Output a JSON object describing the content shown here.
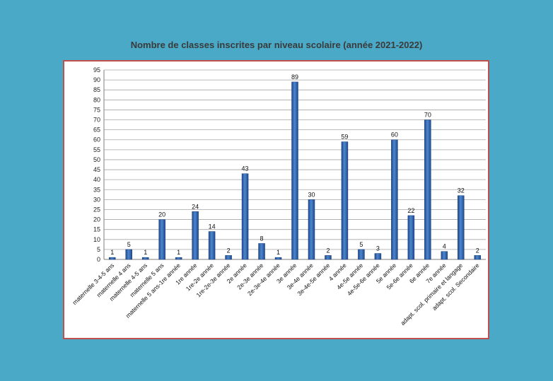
{
  "chart_data": {
    "type": "bar",
    "title": "Nombre de classes inscrites par niveau scolaire (année 2021-2022)",
    "xlabel": "",
    "ylabel": "",
    "ylim": [
      0,
      95
    ],
    "yticks": [
      0,
      5,
      10,
      15,
      20,
      25,
      30,
      35,
      40,
      45,
      50,
      55,
      60,
      65,
      70,
      75,
      80,
      85,
      90,
      95
    ],
    "grid": true,
    "bar_color": "#2e5fa8",
    "categories": [
      "maternelle 3-4-5 ans",
      "maternelle 4 ans",
      "maternelle 4-5 ans",
      "maternelle 5 ans",
      "maternelle 5 ans-1re année",
      "1re année",
      "1re-2e année",
      "1re-2e-3e année",
      "2e année",
      "2e-3e année",
      "2e-3e-4e année",
      "3e année",
      "3e-4e année",
      "3e-4e-5e année",
      "4 année",
      "4e-5e année",
      "4e-5e-6e année",
      "5e année",
      "5e-6e année",
      "6e année",
      "7e année",
      "adapt. scol. primaire et langage",
      "adapt. scol. Secondaire"
    ],
    "values": [
      1,
      5,
      1,
      20,
      1,
      24,
      14,
      2,
      43,
      8,
      1,
      89,
      30,
      2,
      59,
      5,
      3,
      60,
      22,
      70,
      4,
      32,
      2
    ]
  }
}
